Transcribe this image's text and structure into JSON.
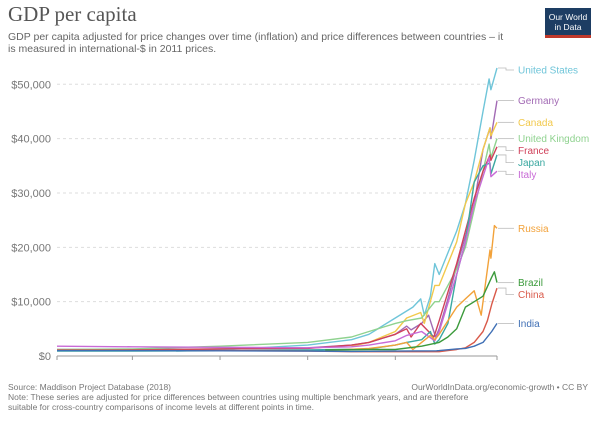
{
  "header": {
    "title": "GDP per capita",
    "subtitle": "GDP per capita adjusted for price changes over time (inflation) and price differences between countries – it is measured in international-$ in 2011 prices.",
    "logo_line1": "Our World",
    "logo_line2": "in Data"
  },
  "footer": {
    "source": "Source: Maddison Project Database (2018)",
    "credit": "OurWorldInData.org/economic-growth • CC BY",
    "note": "Note: These series are adjusted for price differences between countries using multiple benchmark years, and are therefore suitable for cross-country comparisons of income levels at different points in time."
  },
  "chart_data": {
    "type": "line",
    "title": "GDP per capita",
    "xlim": [
      1514,
      2016
    ],
    "ylim": [
      0,
      53000
    ],
    "x_ticks": [
      1514,
      1600,
      1700,
      1800,
      1900,
      2016
    ],
    "y_ticks": [
      0,
      10000,
      20000,
      30000,
      40000,
      50000
    ],
    "y_tick_labels": [
      "$0",
      "$10,000",
      "$20,000",
      "$30,000",
      "$40,000",
      "$50,000"
    ],
    "grid": "horizontal dotted",
    "legend": "right-side line labels",
    "series": [
      {
        "name": "United States",
        "color": "#6fc5d9",
        "points": [
          [
            1650,
            900
          ],
          [
            1700,
            1100
          ],
          [
            1800,
            2000
          ],
          [
            1850,
            3000
          ],
          [
            1870,
            4000
          ],
          [
            1900,
            7000
          ],
          [
            1920,
            9000
          ],
          [
            1929,
            10500
          ],
          [
            1933,
            7500
          ],
          [
            1940,
            11000
          ],
          [
            1945,
            17000
          ],
          [
            1950,
            15000
          ],
          [
            1970,
            23000
          ],
          [
            1980,
            28000
          ],
          [
            1990,
            36000
          ],
          [
            2000,
            45000
          ],
          [
            2007,
            51000
          ],
          [
            2009,
            49000
          ],
          [
            2016,
            53000
          ]
        ]
      },
      {
        "name": "Germany",
        "color": "#a26ab4",
        "points": [
          [
            1514,
            1200
          ],
          [
            1600,
            1200
          ],
          [
            1700,
            1300
          ],
          [
            1800,
            1500
          ],
          [
            1850,
            2000
          ],
          [
            1870,
            2500
          ],
          [
            1900,
            4000
          ],
          [
            1913,
            5500
          ],
          [
            1918,
            4800
          ],
          [
            1930,
            6000
          ],
          [
            1938,
            7500
          ],
          [
            1946,
            3500
          ],
          [
            1950,
            5000
          ],
          [
            1960,
            10500
          ],
          [
            1970,
            16500
          ],
          [
            1980,
            22000
          ],
          [
            1990,
            28000
          ],
          [
            2000,
            38000
          ],
          [
            2008,
            42000
          ],
          [
            2009,
            40000
          ],
          [
            2016,
            47000
          ]
        ]
      },
      {
        "name": "Canada",
        "color": "#f2c94c",
        "points": [
          [
            1850,
            1800
          ],
          [
            1870,
            2500
          ],
          [
            1900,
            4500
          ],
          [
            1913,
            7000
          ],
          [
            1929,
            8000
          ],
          [
            1933,
            6000
          ],
          [
            1945,
            13000
          ],
          [
            1950,
            13000
          ],
          [
            1970,
            21000
          ],
          [
            1980,
            28000
          ],
          [
            1990,
            32000
          ],
          [
            2000,
            38000
          ],
          [
            2008,
            42000
          ],
          [
            2009,
            40500
          ],
          [
            2016,
            43000
          ]
        ]
      },
      {
        "name": "United Kingdom",
        "color": "#8fd28f",
        "points": [
          [
            1514,
            1200
          ],
          [
            1600,
            1300
          ],
          [
            1700,
            1800
          ],
          [
            1800,
            2500
          ],
          [
            1850,
            3500
          ],
          [
            1870,
            4500
          ],
          [
            1900,
            6000
          ],
          [
            1913,
            6500
          ],
          [
            1930,
            7000
          ],
          [
            1945,
            10000
          ],
          [
            1950,
            10000
          ],
          [
            1970,
            16000
          ],
          [
            1980,
            20000
          ],
          [
            1990,
            27000
          ],
          [
            2000,
            34000
          ],
          [
            2007,
            39000
          ],
          [
            2009,
            36500
          ],
          [
            2016,
            40000
          ]
        ]
      },
      {
        "name": "France",
        "color": "#d0415a",
        "points": [
          [
            1514,
            1000
          ],
          [
            1600,
            1100
          ],
          [
            1700,
            1300
          ],
          [
            1800,
            1400
          ],
          [
            1850,
            2000
          ],
          [
            1870,
            2500
          ],
          [
            1900,
            4000
          ],
          [
            1913,
            5000
          ],
          [
            1918,
            3500
          ],
          [
            1929,
            6000
          ],
          [
            1944,
            3500
          ],
          [
            1950,
            6500
          ],
          [
            1970,
            17000
          ],
          [
            1980,
            23000
          ],
          [
            1990,
            29000
          ],
          [
            2000,
            34000
          ],
          [
            2008,
            37000
          ],
          [
            2009,
            36000
          ],
          [
            2016,
            38500
          ]
        ]
      },
      {
        "name": "Japan",
        "color": "#3aa8a0",
        "points": [
          [
            1514,
            900
          ],
          [
            1600,
            900
          ],
          [
            1700,
            950
          ],
          [
            1800,
            1100
          ],
          [
            1870,
            1300
          ],
          [
            1900,
            2000
          ],
          [
            1913,
            2500
          ],
          [
            1930,
            3000
          ],
          [
            1940,
            4500
          ],
          [
            1945,
            2200
          ],
          [
            1950,
            3000
          ],
          [
            1960,
            6000
          ],
          [
            1970,
            15000
          ],
          [
            1980,
            21000
          ],
          [
            1990,
            32000
          ],
          [
            2000,
            35000
          ],
          [
            2008,
            35500
          ],
          [
            2009,
            33500
          ],
          [
            2016,
            37000
          ]
        ]
      },
      {
        "name": "Italy",
        "color": "#c86ad6",
        "points": [
          [
            1514,
            1800
          ],
          [
            1600,
            1700
          ],
          [
            1700,
            1600
          ],
          [
            1800,
            1500
          ],
          [
            1850,
            1700
          ],
          [
            1870,
            2000
          ],
          [
            1900,
            2800
          ],
          [
            1913,
            3800
          ],
          [
            1930,
            4500
          ],
          [
            1945,
            2800
          ],
          [
            1950,
            4500
          ],
          [
            1970,
            15000
          ],
          [
            1980,
            21000
          ],
          [
            1990,
            28000
          ],
          [
            2000,
            33000
          ],
          [
            2007,
            36500
          ],
          [
            2009,
            33000
          ],
          [
            2016,
            34000
          ]
        ]
      },
      {
        "name": "Russia",
        "color": "#f2a23a",
        "points": [
          [
            1820,
            1000
          ],
          [
            1870,
            1400
          ],
          [
            1900,
            2000
          ],
          [
            1913,
            2500
          ],
          [
            1920,
            1200
          ],
          [
            1930,
            2500
          ],
          [
            1940,
            3800
          ],
          [
            1945,
            3000
          ],
          [
            1950,
            4000
          ],
          [
            1960,
            6500
          ],
          [
            1970,
            9000
          ],
          [
            1980,
            10500
          ],
          [
            1990,
            12000
          ],
          [
            1998,
            7500
          ],
          [
            2008,
            19500
          ],
          [
            2009,
            18000
          ],
          [
            2013,
            24000
          ],
          [
            2016,
            23500
          ]
        ]
      },
      {
        "name": "Brazil",
        "color": "#3b9a3b",
        "points": [
          [
            1820,
            1100
          ],
          [
            1870,
            1200
          ],
          [
            1900,
            1200
          ],
          [
            1930,
            1800
          ],
          [
            1950,
            2500
          ],
          [
            1960,
            3500
          ],
          [
            1970,
            5000
          ],
          [
            1980,
            9000
          ],
          [
            1990,
            10000
          ],
          [
            2000,
            11000
          ],
          [
            2010,
            14500
          ],
          [
            2013,
            15500
          ],
          [
            2016,
            13500
          ]
        ]
      },
      {
        "name": "China",
        "color": "#d95a4a",
        "points": [
          [
            1514,
            1100
          ],
          [
            1600,
            1100
          ],
          [
            1700,
            1000
          ],
          [
            1800,
            900
          ],
          [
            1850,
            800
          ],
          [
            1900,
            800
          ],
          [
            1950,
            800
          ],
          [
            1960,
            1000
          ],
          [
            1970,
            1200
          ],
          [
            1980,
            1500
          ],
          [
            1990,
            2500
          ],
          [
            2000,
            4500
          ],
          [
            2005,
            6500
          ],
          [
            2010,
            9500
          ],
          [
            2016,
            12500
          ]
        ]
      },
      {
        "name": "India",
        "color": "#3f6fb5",
        "points": [
          [
            1514,
            1000
          ],
          [
            1600,
            1000
          ],
          [
            1700,
            950
          ],
          [
            1800,
            900
          ],
          [
            1850,
            850
          ],
          [
            1900,
            900
          ],
          [
            1947,
            950
          ],
          [
            1950,
            1000
          ],
          [
            1970,
            1300
          ],
          [
            1980,
            1400
          ],
          [
            1990,
            1800
          ],
          [
            2000,
            2500
          ],
          [
            2010,
            4500
          ],
          [
            2016,
            6000
          ]
        ]
      }
    ]
  }
}
